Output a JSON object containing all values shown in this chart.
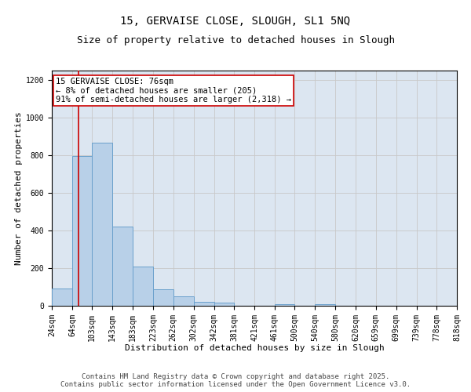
{
  "title1": "15, GERVAISE CLOSE, SLOUGH, SL1 5NQ",
  "title2": "Size of property relative to detached houses in Slough",
  "xlabel": "Distribution of detached houses by size in Slough",
  "ylabel": "Number of detached properties",
  "annotation_line1": "15 GERVAISE CLOSE: 76sqm",
  "annotation_line2": "← 8% of detached houses are smaller (205)",
  "annotation_line3": "91% of semi-detached houses are larger (2,318) →",
  "footer1": "Contains HM Land Registry data © Crown copyright and database right 2025.",
  "footer2": "Contains public sector information licensed under the Open Government Licence v3.0.",
  "bin_edges": [
    24,
    64,
    103,
    143,
    183,
    223,
    262,
    302,
    342,
    381,
    421,
    461,
    500,
    540,
    580,
    620,
    659,
    699,
    739,
    778,
    818
  ],
  "bin_heights": [
    90,
    795,
    868,
    422,
    207,
    88,
    50,
    22,
    15,
    2,
    0,
    10,
    0,
    10,
    0,
    0,
    0,
    0,
    0,
    0
  ],
  "bar_color": "#b8d0e8",
  "bar_edge_color": "#6aa0cc",
  "red_line_x": 76,
  "ylim": [
    0,
    1250
  ],
  "yticks": [
    0,
    200,
    400,
    600,
    800,
    1000,
    1200
  ],
  "grid_color": "#c8c8c8",
  "bg_color": "#dce6f1",
  "annotation_box_color": "#ffffff",
  "annotation_box_edge": "#cc0000",
  "red_line_color": "#cc0000",
  "title_fontsize": 10,
  "subtitle_fontsize": 9,
  "axis_label_fontsize": 8,
  "tick_fontsize": 7,
  "annotation_fontsize": 7.5,
  "footer_fontsize": 6.5
}
